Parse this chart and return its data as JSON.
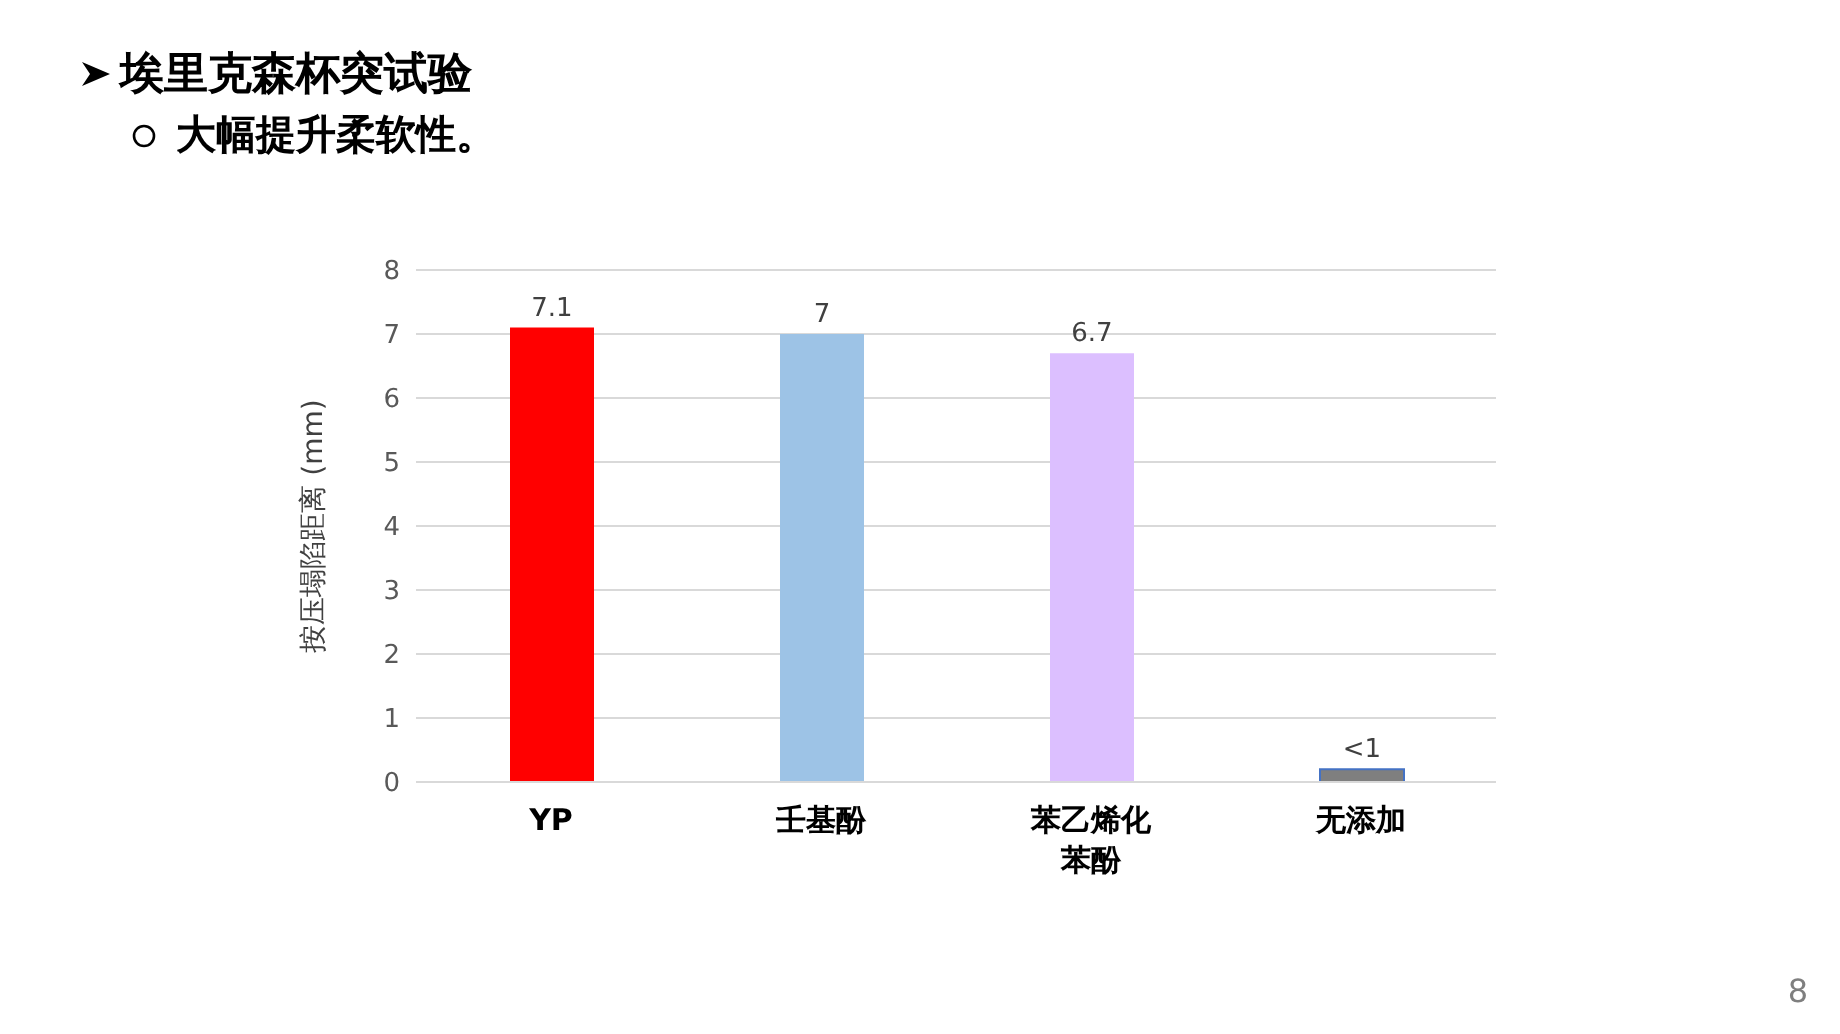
{
  "chart_data": {
    "type": "bar",
    "title": "埃里克森杯突试验",
    "subtitle": "大幅提升柔软性。",
    "ylabel": "按压塌陷距离 (mm)",
    "categories": [
      "YP",
      "壬基酚",
      "苯乙烯化苯酚",
      "无添加"
    ],
    "values": [
      7.1,
      7,
      6.7,
      0.2
    ],
    "colors": [
      "#ff0000",
      "#9dc3e6",
      "#dcbfff",
      "#7f7f7f"
    ],
    "value_labels": [
      "7.1",
      "7",
      "6.7",
      "<1"
    ],
    "ylim": [
      0,
      8
    ],
    "yticks": [
      0,
      1,
      2,
      3,
      4,
      5,
      6,
      7,
      8
    ],
    "grid": "y",
    "legend": false,
    "annotations": [
      "8"
    ]
  }
}
